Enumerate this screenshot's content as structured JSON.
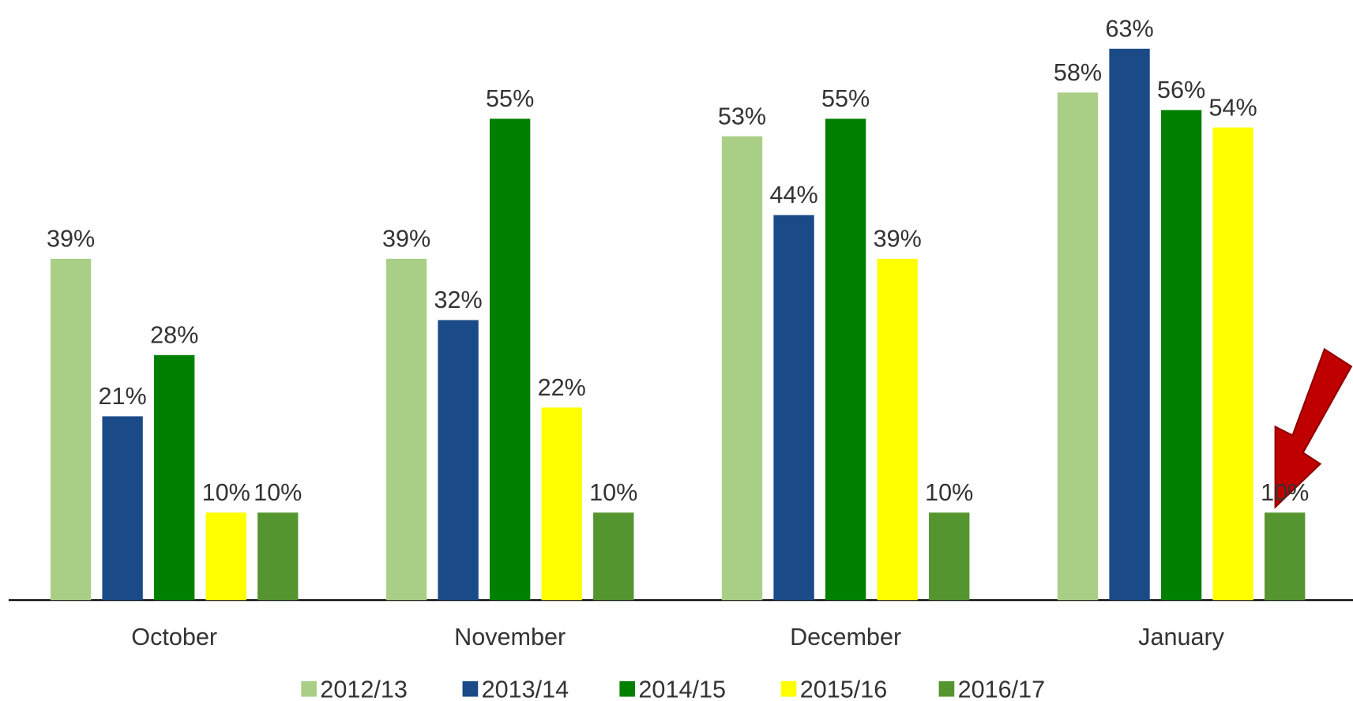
{
  "chart_data": {
    "type": "bar",
    "categories": [
      "October",
      "November",
      "December",
      "January"
    ],
    "series": [
      {
        "name": "2012/13",
        "color": "#a9cf86",
        "values": [
          39,
          39,
          53,
          58
        ],
        "value_labels": [
          "39%",
          "39%",
          "53%",
          "58%"
        ]
      },
      {
        "name": "2013/14",
        "color": "#1a4a87",
        "values": [
          21,
          32,
          44,
          63
        ],
        "value_labels": [
          "21%",
          "32%",
          "44%",
          "63%"
        ]
      },
      {
        "name": "2014/15",
        "color": "#008000",
        "values": [
          28,
          55,
          55,
          56
        ],
        "value_labels": [
          "28%",
          "55%",
          "55%",
          "56%"
        ]
      },
      {
        "name": "2015/16",
        "color": "#ffff00",
        "values": [
          10,
          22,
          39,
          54
        ],
        "value_labels": [
          "10%",
          "22%",
          "39%",
          "54%"
        ]
      },
      {
        "name": "2016/17",
        "color": "#55952f",
        "values": [
          10,
          10,
          10,
          10
        ],
        "value_labels": [
          "10%",
          "10%",
          "10%",
          "10%"
        ]
      }
    ],
    "legend": "bottom"
  }
}
